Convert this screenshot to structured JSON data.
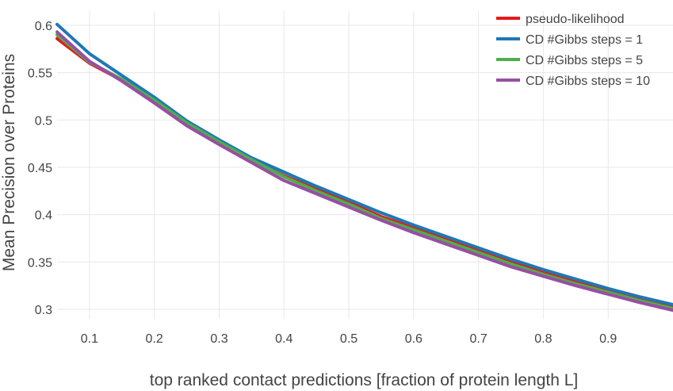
{
  "chart_data": {
    "type": "line",
    "title": "",
    "xlabel": "top ranked contact predictions [fraction of protein length L]",
    "ylabel": "Mean Precision over Proteins",
    "xlim": [
      0.05,
      1.0
    ],
    "ylim": [
      0.29,
      0.615
    ],
    "x_ticks": [
      0.1,
      0.2,
      0.3,
      0.4,
      0.5,
      0.6,
      0.7,
      0.8,
      0.9
    ],
    "x_tick_labels": [
      "0.1",
      "0.2",
      "0.3",
      "0.4",
      "0.5",
      "0.6",
      "0.7",
      "0.8",
      "0.9"
    ],
    "y_ticks": [
      0.3,
      0.35,
      0.4,
      0.45,
      0.5,
      0.55,
      0.6
    ],
    "y_tick_labels": [
      "0.3",
      "0.35",
      "0.4",
      "0.45",
      "0.5",
      "0.55",
      "0.6"
    ],
    "grid": true,
    "legend_position": "top-right",
    "x": [
      0.05,
      0.1,
      0.15,
      0.2,
      0.25,
      0.3,
      0.35,
      0.4,
      0.45,
      0.5,
      0.55,
      0.6,
      0.65,
      0.7,
      0.75,
      0.8,
      0.85,
      0.9,
      0.95,
      1.0
    ],
    "series": [
      {
        "name": "pseudo-likelihood",
        "color": "#e41a1c",
        "values": [
          0.586,
          0.56,
          0.542,
          0.519,
          0.495,
          0.476,
          0.457,
          0.441,
          0.427,
          0.413,
          0.398,
          0.386,
          0.374,
          0.362,
          0.35,
          0.339,
          0.329,
          0.319,
          0.31,
          0.302
        ]
      },
      {
        "name": "CD #Gibbs steps = 1",
        "color": "#1f78b4",
        "values": [
          0.601,
          0.57,
          0.547,
          0.524,
          0.499,
          0.479,
          0.46,
          0.445,
          0.43,
          0.416,
          0.402,
          0.389,
          0.377,
          0.365,
          0.353,
          0.342,
          0.332,
          0.322,
          0.313,
          0.305
        ]
      },
      {
        "name": "CD #Gibbs steps = 5",
        "color": "#4daf4a",
        "values": [
          0.59,
          0.561,
          0.543,
          0.521,
          0.497,
          0.477,
          0.458,
          0.44,
          0.425,
          0.411,
          0.396,
          0.384,
          0.372,
          0.36,
          0.348,
          0.337,
          0.327,
          0.318,
          0.309,
          0.301
        ]
      },
      {
        "name": "CD #Gibbs steps = 10",
        "color": "#984ea3",
        "values": [
          0.593,
          0.562,
          0.541,
          0.518,
          0.494,
          0.474,
          0.455,
          0.436,
          0.422,
          0.408,
          0.394,
          0.381,
          0.369,
          0.357,
          0.345,
          0.335,
          0.325,
          0.316,
          0.307,
          0.299
        ]
      }
    ]
  }
}
